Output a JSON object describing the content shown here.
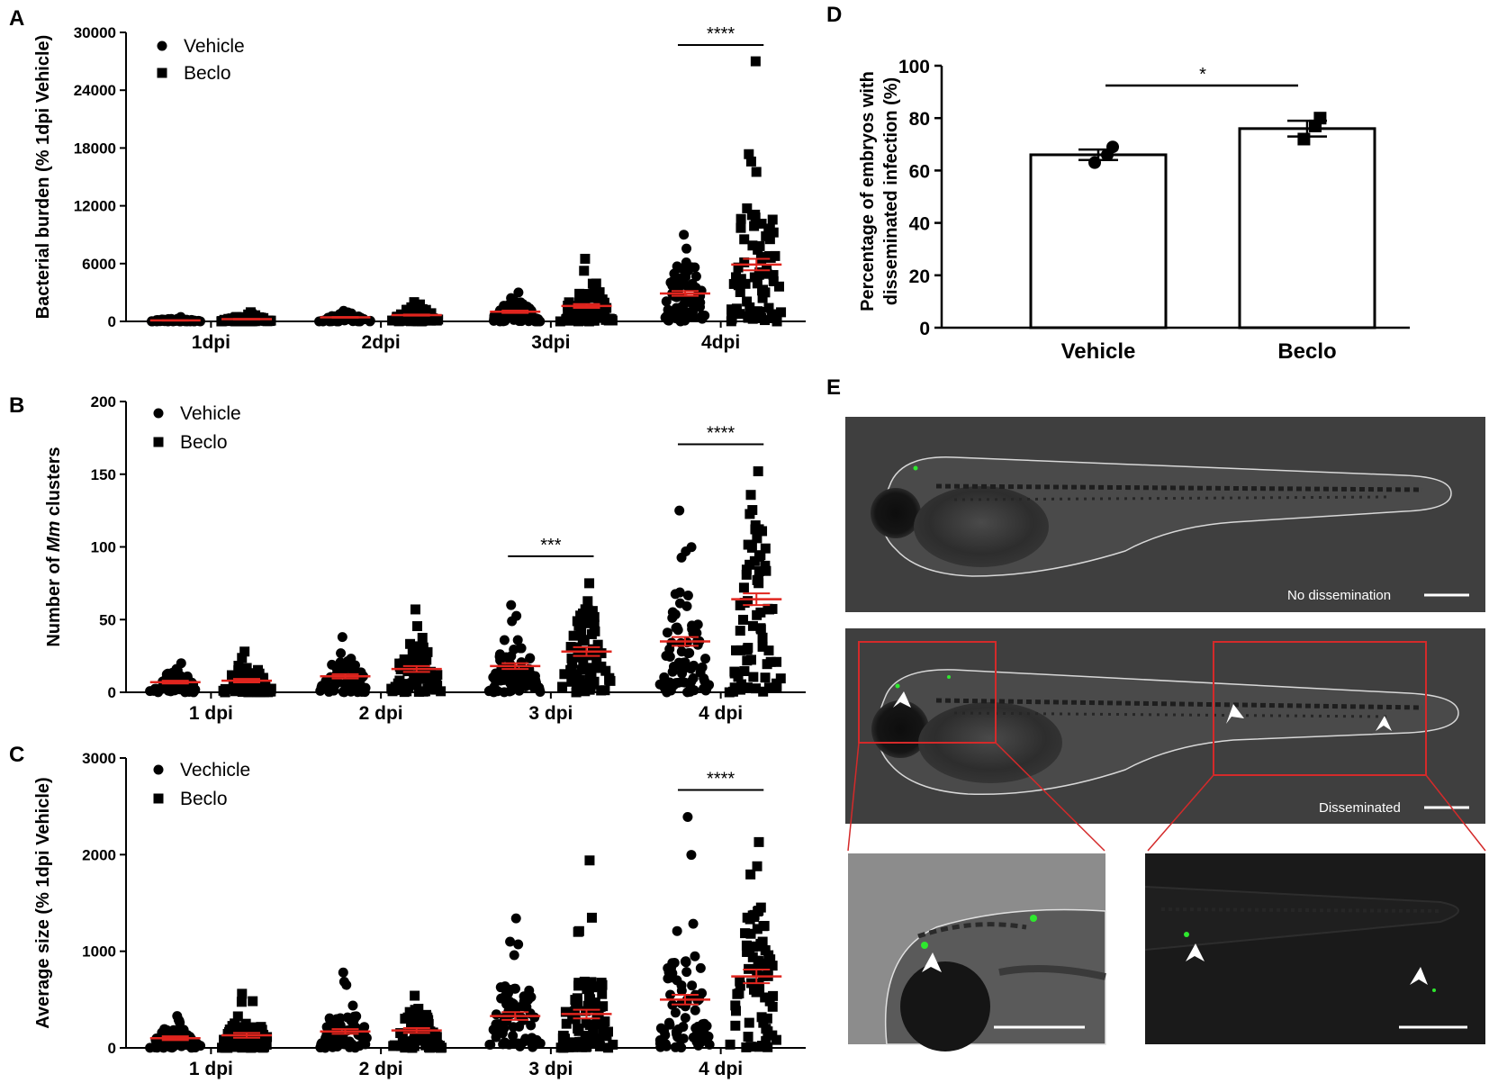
{
  "figure": {
    "panels": [
      {
        "letter": "A",
        "chart_data": {
          "type": "scatter",
          "ylabel": "Bacterial burden (% 1dpi Vehicle)",
          "ylim": [
            0,
            30000
          ],
          "yticks": [
            "0",
            "6000",
            "12000",
            "18000",
            "24000",
            "30000"
          ],
          "categories": [
            "1dpi",
            "2dpi",
            "3dpi",
            "4dpi"
          ],
          "legend": [
            "Vehicle",
            "Beclo"
          ],
          "legend_position": "top-left",
          "series": [
            {
              "name": "Vehicle",
              "marker": "circle",
              "mean": [
                100,
                420,
                1000,
                2900
              ],
              "sem": [
                20,
                40,
                120,
                250
              ],
              "spread": [
                450,
                1100,
                3000,
                9000
              ]
            },
            {
              "name": "Beclo",
              "marker": "square",
              "mean": [
                230,
                650,
                1600,
                5900
              ],
              "sem": [
                30,
                60,
                200,
                600
              ],
              "spread": [
                950,
                2000,
                6500,
                27000
              ]
            }
          ],
          "significance": [
            {
              "category": 3,
              "label": "****"
            }
          ]
        }
      },
      {
        "letter": "B",
        "chart_data": {
          "type": "scatter",
          "ylabel_parts": [
            "Number of ",
            "Mm",
            " clusters"
          ],
          "ylim": [
            0,
            200
          ],
          "yticks": [
            "0",
            "50",
            "100",
            "150",
            "200"
          ],
          "categories": [
            "1 dpi",
            "2 dpi",
            "3 dpi",
            "4 dpi"
          ],
          "legend": [
            "Vehicle",
            "Beclo"
          ],
          "legend_position": "top-left",
          "series": [
            {
              "name": "Vehicle",
              "marker": "circle",
              "mean": [
                7,
                11,
                18,
                35
              ],
              "sem": [
                1,
                1.5,
                2,
                3
              ],
              "spread": [
                20,
                38,
                60,
                125
              ]
            },
            {
              "name": "Beclo",
              "marker": "square",
              "mean": [
                8,
                16,
                28,
                64
              ],
              "sem": [
                1.2,
                2,
                3,
                4
              ],
              "spread": [
                28,
                57,
                75,
                152
              ]
            }
          ],
          "significance": [
            {
              "category": 2,
              "label": "***"
            },
            {
              "category": 3,
              "label": "****"
            }
          ]
        }
      },
      {
        "letter": "C",
        "chart_data": {
          "type": "scatter",
          "ylabel": "Average size (% 1dpi Vehicle)",
          "ylim": [
            0,
            3000
          ],
          "yticks": [
            "0",
            "1000",
            "2000",
            "3000"
          ],
          "categories": [
            "1 dpi",
            "2 dpi",
            "3 dpi",
            "4 dpi"
          ],
          "legend": [
            "Vechicle",
            "Beclo"
          ],
          "legend_position": "top-left",
          "series": [
            {
              "name": "Vechicle",
              "marker": "circle",
              "mean": [
                100,
                170,
                330,
                500
              ],
              "sem": [
                20,
                25,
                40,
                50
              ],
              "spread": [
                330,
                780,
                1340,
                2390
              ]
            },
            {
              "name": "Beclo",
              "marker": "square",
              "mean": [
                130,
                180,
                350,
                740
              ],
              "sem": [
                25,
                25,
                45,
                70
              ],
              "spread": [
                560,
                540,
                1940,
                2130
              ]
            }
          ],
          "significance": [
            {
              "category": 3,
              "label": "****"
            }
          ]
        }
      },
      {
        "letter": "D",
        "chart_data": {
          "type": "bar",
          "ylabel_lines": [
            "Percentage of embryos with",
            "disseminated infection (%)"
          ],
          "ylim": [
            0,
            100
          ],
          "yticks": [
            "0",
            "20",
            "40",
            "60",
            "80",
            "100"
          ],
          "categories": [
            "Vehicle",
            "Beclo"
          ],
          "values": [
            66,
            76
          ],
          "sem": [
            2,
            3
          ],
          "points": [
            [
              63,
              66,
              69
            ],
            [
              72,
              77,
              80
            ]
          ],
          "markers": [
            "circle",
            "square"
          ],
          "significance": [
            {
              "from": 0,
              "to": 1,
              "label": "*"
            }
          ]
        }
      },
      {
        "letter": "E",
        "images": {
          "top_label": "No dissemination",
          "middle_label": "Disseminated",
          "bg_color": "#3f3f3f",
          "accent_color": "#d42a2a",
          "fluorescence_color": "#2ee82e"
        }
      }
    ]
  }
}
